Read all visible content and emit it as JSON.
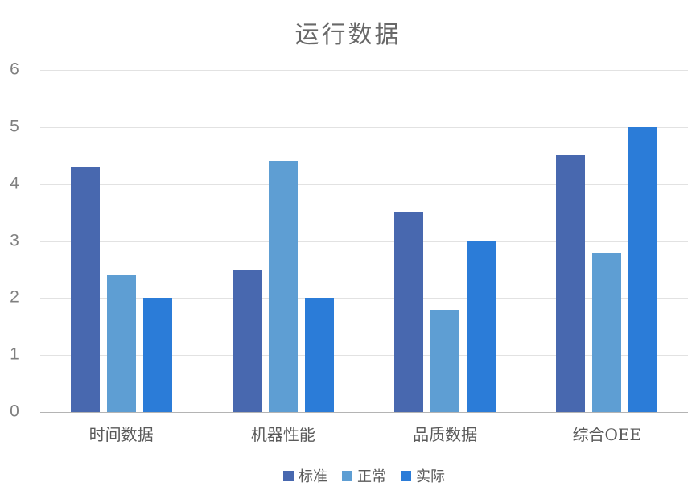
{
  "title": "运行数据",
  "colors": {
    "series_standard": "#4868AF",
    "series_normal": "#5E9ED3",
    "series_actual": "#2B7CD8",
    "title_text": "#686868",
    "axis_tick_text": "#7F7F7F",
    "category_text": "#5A5A5A",
    "gridline": "#E2E2E2",
    "axis_line": "#B4B4B4"
  },
  "chart_data": {
    "type": "bar",
    "title": "运行数据",
    "categories": [
      "时间数据",
      "机器性能",
      "品质数据",
      "综合OEE"
    ],
    "series": [
      {
        "name": "标准",
        "color": "#4868AF",
        "values": [
          4.3,
          2.5,
          3.5,
          4.5
        ]
      },
      {
        "name": "正常",
        "color": "#5E9ED3",
        "values": [
          2.4,
          4.4,
          1.8,
          2.8
        ]
      },
      {
        "name": "实际",
        "color": "#2B7CD8",
        "values": [
          2.0,
          2.0,
          3.0,
          5.0
        ]
      }
    ],
    "xlabel": "",
    "ylabel": "",
    "ylim": [
      0,
      6
    ],
    "ytick_interval": 1,
    "ytick_labels": [
      "0",
      "1",
      "2",
      "3",
      "4",
      "5",
      "6"
    ],
    "grid": true,
    "legend_position": "bottom-center"
  }
}
